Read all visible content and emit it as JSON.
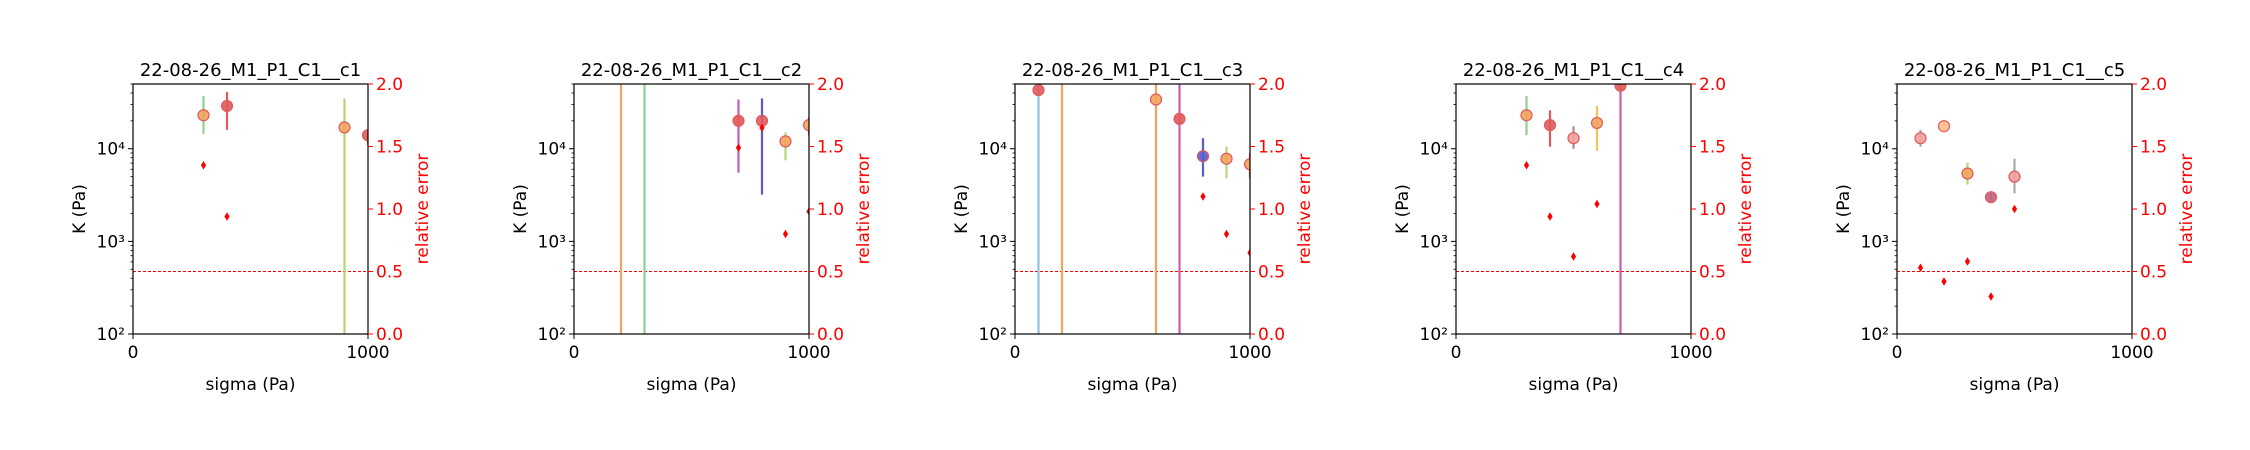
{
  "chart_data": [
    {
      "type": "scatter",
      "title": "22-08-26_M1_P1_C1__c1",
      "xlabel": "sigma (Pa)",
      "ylabel": "K (Pa)",
      "y2label": "relative error",
      "xlim": [
        0,
        1000
      ],
      "xticks": [
        "0",
        "1000"
      ],
      "ylim": [
        100,
        50000
      ],
      "yscale": "log",
      "yticks": [
        "10²",
        "10³",
        "10⁴"
      ],
      "y2lim": [
        0,
        2.0
      ],
      "y2ticks": [
        "0.0",
        "0.5",
        "1.0",
        "1.5",
        "2.0"
      ],
      "threshold": 0.5,
      "points": [
        {
          "x": 300,
          "K": 23000,
          "lo": 14500,
          "hi": 37000,
          "bar": "#8fd18f",
          "face": "#f2a35c"
        },
        {
          "x": 400,
          "K": 29000,
          "lo": 16000,
          "hi": 41000,
          "bar": "#e05a5a",
          "face": "#e05a5a"
        },
        {
          "x": 900,
          "K": 17000,
          "lo": 100,
          "hi": 35000,
          "bar": "#b5d67a",
          "face": "#f2a35c"
        },
        {
          "x": 1000,
          "K": 14000,
          "lo": 11000,
          "hi": 16000,
          "bar": "#e05a5a",
          "face": "#e05a5a"
        }
      ],
      "rel_error": [
        {
          "x": 300,
          "v": 1.35
        },
        {
          "x": 400,
          "v": 0.94
        }
      ]
    },
    {
      "type": "scatter",
      "title": "22-08-26_M1_P1_C1__c2",
      "xlabel": "sigma (Pa)",
      "ylabel": "K (Pa)",
      "y2label": "relative error",
      "xlim": [
        0,
        1000
      ],
      "xticks": [
        "0",
        "1000"
      ],
      "ylim": [
        100,
        50000
      ],
      "yscale": "log",
      "yticks": [
        "10²",
        "10³",
        "10⁴"
      ],
      "y2lim": [
        0,
        2.0
      ],
      "y2ticks": [
        "0.0",
        "0.5",
        "1.0",
        "1.5",
        "2.0"
      ],
      "threshold": 0.5,
      "points": [
        {
          "x": 200,
          "K": null,
          "lo": 100,
          "hi": 50000,
          "bar": "#f2a35c",
          "face": null
        },
        {
          "x": 300,
          "K": null,
          "lo": 100,
          "hi": 50000,
          "bar": "#8fd18f",
          "face": null
        },
        {
          "x": 700,
          "K": 20000,
          "lo": 5500,
          "hi": 34000,
          "bar": "#c75fb0",
          "face": "#e05a5a"
        },
        {
          "x": 800,
          "K": 20000,
          "lo": 3200,
          "hi": 35000,
          "bar": "#5a5ad0",
          "face": "#e05a5a"
        },
        {
          "x": 900,
          "K": 12000,
          "lo": 7500,
          "hi": 15000,
          "bar": "#b5d67a",
          "face": "#f2a35c"
        },
        {
          "x": 1000,
          "K": 18000,
          "lo": 14000,
          "hi": 22000,
          "bar": "#e05a5a",
          "face": "#f2a35c"
        }
      ],
      "rel_error": [
        {
          "x": 700,
          "v": 1.49
        },
        {
          "x": 800,
          "v": 1.65
        },
        {
          "x": 900,
          "v": 0.8
        },
        {
          "x": 1000,
          "v": 0.98
        }
      ]
    },
    {
      "type": "scatter",
      "title": "22-08-26_M1_P1_C1__c3",
      "xlabel": "sigma (Pa)",
      "ylabel": "K (Pa)",
      "y2label": "relative error",
      "xlim": [
        0,
        1000
      ],
      "xticks": [
        "0",
        "1000"
      ],
      "ylim": [
        100,
        50000
      ],
      "yscale": "log",
      "yticks": [
        "10²",
        "10³",
        "10⁴"
      ],
      "y2lim": [
        0,
        2.0
      ],
      "y2ticks": [
        "0.0",
        "0.5",
        "1.0",
        "1.5",
        "2.0"
      ],
      "threshold": 0.5,
      "points": [
        {
          "x": 100,
          "K": 43000,
          "lo": 100,
          "hi": 50000,
          "bar": "#8ec3e6",
          "face": "#e05a5a"
        },
        {
          "x": 200,
          "K": null,
          "lo": 100,
          "hi": 50000,
          "bar": "#f2a35c",
          "face": null
        },
        {
          "x": 600,
          "K": 34000,
          "lo": 100,
          "hi": 50000,
          "bar": "#f2a35c",
          "face": "#f2a35c"
        },
        {
          "x": 700,
          "K": 21000,
          "lo": 100,
          "hi": 50000,
          "bar": "#c75fb0",
          "face": "#e05a5a"
        },
        {
          "x": 800,
          "K": 8300,
          "lo": 5000,
          "hi": 13000,
          "bar": "#5a5ad0",
          "face": "#5a5ad0"
        },
        {
          "x": 900,
          "K": 7800,
          "lo": 4800,
          "hi": 10500,
          "bar": "#b5d67a",
          "face": "#f2a35c"
        },
        {
          "x": 1000,
          "K": 6800,
          "lo": 4800,
          "hi": 9000,
          "bar": "#e05a5a",
          "face": "#f2a35c"
        }
      ],
      "rel_error": [
        {
          "x": 800,
          "v": 1.1
        },
        {
          "x": 900,
          "v": 0.8
        },
        {
          "x": 1000,
          "v": 0.65
        }
      ]
    },
    {
      "type": "scatter",
      "title": "22-08-26_M1_P1_C1__c4",
      "xlabel": "sigma (Pa)",
      "ylabel": "K (Pa)",
      "y2label": "relative error",
      "xlim": [
        0,
        1000
      ],
      "xticks": [
        "0",
        "1000"
      ],
      "ylim": [
        100,
        50000
      ],
      "yscale": "log",
      "yticks": [
        "10²",
        "10³",
        "10⁴"
      ],
      "y2lim": [
        0,
        2.0
      ],
      "y2ticks": [
        "0.0",
        "0.5",
        "1.0",
        "1.5",
        "2.0"
      ],
      "threshold": 0.5,
      "points": [
        {
          "x": 300,
          "K": 23000,
          "lo": 14000,
          "hi": 37000,
          "bar": "#8fd18f",
          "face": "#f2a35c"
        },
        {
          "x": 400,
          "K": 18000,
          "lo": 10500,
          "hi": 26000,
          "bar": "#e05a5a",
          "face": "#e05a5a"
        },
        {
          "x": 500,
          "K": 13000,
          "lo": 10000,
          "hi": 17500,
          "bar": "#b08a8a",
          "face": "#f2a0a0"
        },
        {
          "x": 600,
          "K": 19000,
          "lo": 9500,
          "hi": 29000,
          "bar": "#f2c35c",
          "face": "#f2a35c"
        },
        {
          "x": 700,
          "K": 48000,
          "lo": 100,
          "hi": 50000,
          "bar": "#c75fb0",
          "face": "#e05a5a"
        }
      ],
      "rel_error": [
        {
          "x": 300,
          "v": 1.35
        },
        {
          "x": 400,
          "v": 0.94
        },
        {
          "x": 500,
          "v": 0.62
        },
        {
          "x": 600,
          "v": 1.04
        }
      ]
    },
    {
      "type": "scatter",
      "title": "22-08-26_M1_P1_C1__c5",
      "xlabel": "sigma (Pa)",
      "ylabel": "K (Pa)",
      "y2label": "relative error",
      "xlim": [
        0,
        1000
      ],
      "xticks": [
        "0",
        "1000"
      ],
      "ylim": [
        100,
        50000
      ],
      "yscale": "log",
      "yticks": [
        "10²",
        "10³",
        "10⁴"
      ],
      "y2lim": [
        0,
        2.0
      ],
      "y2ticks": [
        "0.0",
        "0.5",
        "1.0",
        "1.5",
        "2.0"
      ],
      "threshold": 0.5,
      "points": [
        {
          "x": 100,
          "K": 13000,
          "lo": 10500,
          "hi": 16000,
          "bar": "#aaaaaa",
          "face": "#f2a0a0"
        },
        {
          "x": 200,
          "K": 17500,
          "lo": 15000,
          "hi": 20500,
          "bar": "#f7bf8f",
          "face": "#f7bf8f"
        },
        {
          "x": 300,
          "K": 5400,
          "lo": 4100,
          "hi": 7100,
          "bar": "#b5d67a",
          "face": "#f2a35c"
        },
        {
          "x": 400,
          "K": 3000,
          "lo": 2700,
          "hi": 3300,
          "bar": "#aaaaaa",
          "face": "#c06080"
        },
        {
          "x": 500,
          "K": 5000,
          "lo": 3300,
          "hi": 7800,
          "bar": "#aaaaaa",
          "face": "#f2a0a0"
        }
      ],
      "rel_error": [
        {
          "x": 100,
          "v": 0.53
        },
        {
          "x": 200,
          "v": 0.42
        },
        {
          "x": 300,
          "v": 0.58
        },
        {
          "x": 400,
          "v": 0.3
        },
        {
          "x": 500,
          "v": 1.0
        }
      ]
    }
  ]
}
